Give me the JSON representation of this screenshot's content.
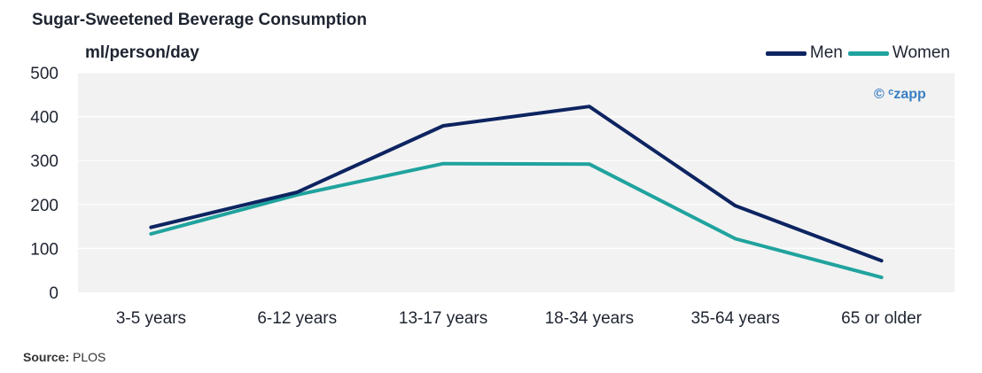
{
  "chart_data": {
    "type": "line",
    "title": "Sugar-Sweetened Beverage Consumption",
    "ylabel": "ml/person/day",
    "xlabel": "",
    "categories": [
      "3-5 years",
      "6-12 years",
      "13-17 years",
      "18-34 years",
      "35-64 years",
      "65 or older"
    ],
    "series": [
      {
        "name": "Men",
        "color": "#0d2461",
        "values": [
          148,
          228,
          379,
          423,
          197,
          72
        ]
      },
      {
        "name": "Women",
        "color": "#20a39e",
        "values": [
          133,
          222,
          293,
          292,
          122,
          34
        ]
      }
    ],
    "ylim": [
      0,
      500
    ],
    "yticks": [
      0,
      100,
      200,
      300,
      400,
      500
    ],
    "grid": true,
    "legend": "top-right",
    "plot_bg": "#f2f2f2"
  },
  "watermark": "© ᶜzapp",
  "source": {
    "label": "Source:",
    "value": "PLOS"
  }
}
